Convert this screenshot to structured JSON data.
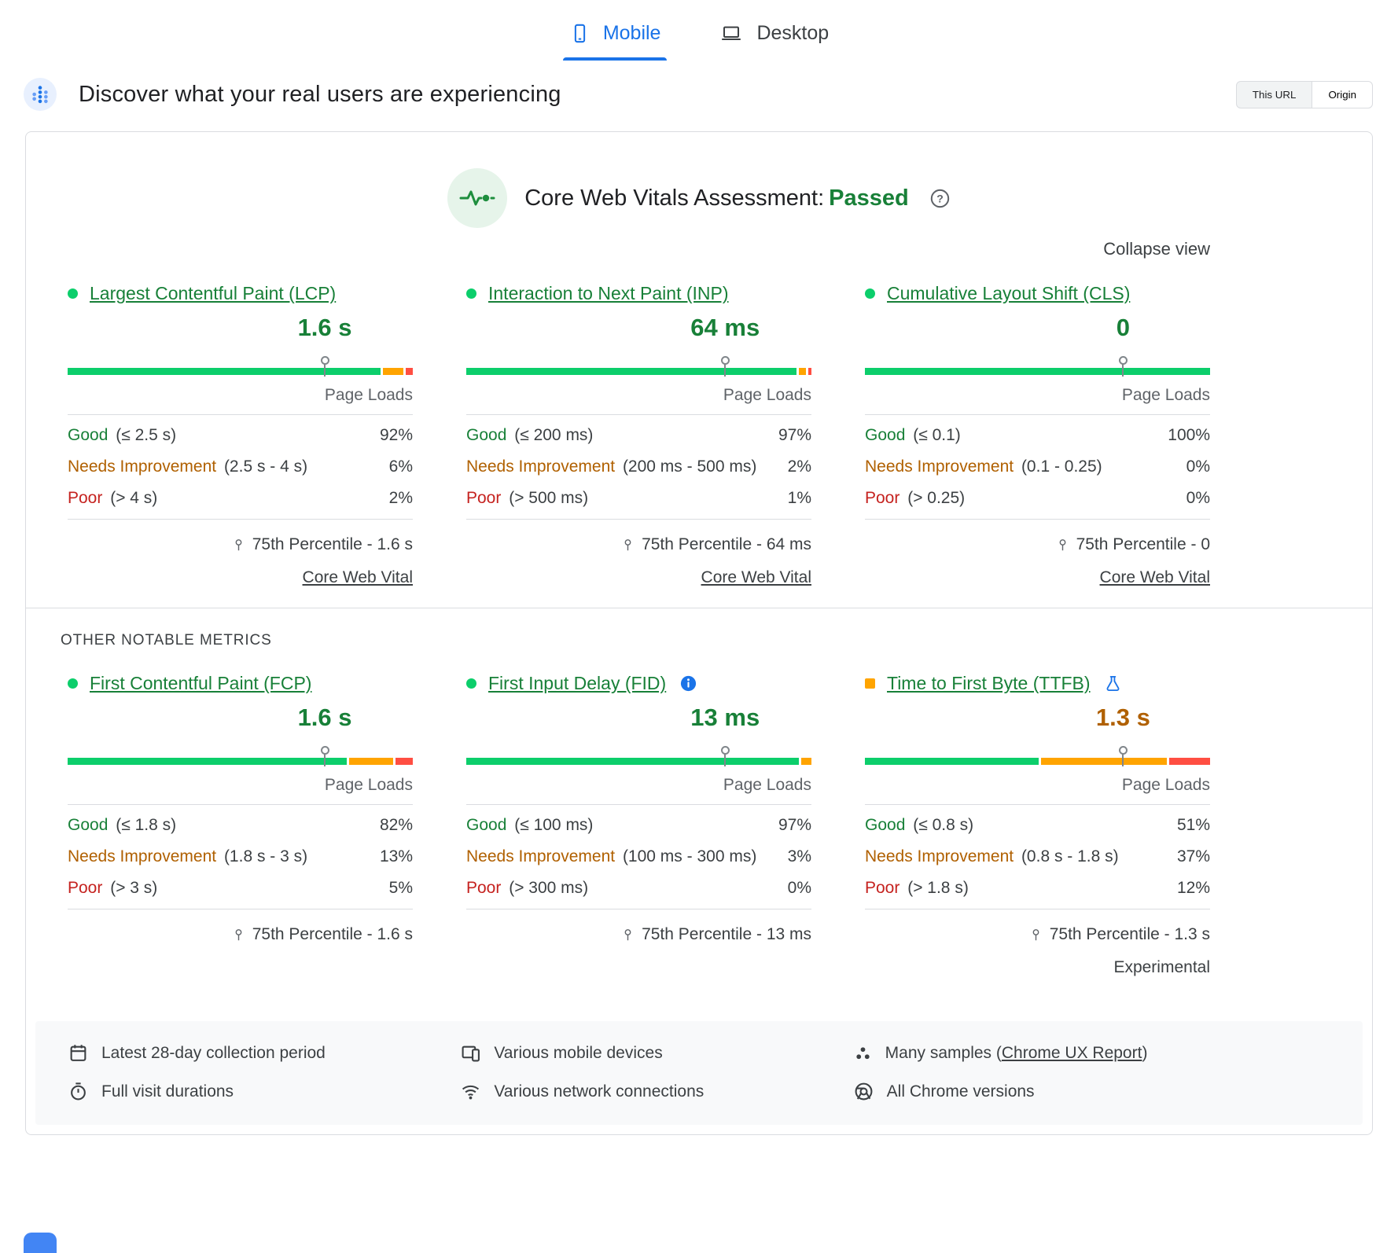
{
  "device_tabs": [
    {
      "label": "Mobile",
      "active": true
    },
    {
      "label": "Desktop",
      "active": false
    }
  ],
  "field_section": {
    "title": "Discover what your real users are experiencing",
    "scope_toggle": [
      {
        "label": "This URL",
        "selected": true
      },
      {
        "label": "Origin",
        "selected": false
      }
    ]
  },
  "assessment": {
    "title": "Core Web Vitals Assessment:",
    "status": "Passed",
    "collapse_label": "Collapse view"
  },
  "section_label": "OTHER NOTABLE METRICS",
  "labels": {
    "page_loads": "Page Loads",
    "core_web_vital": "Core Web Vital",
    "experimental": "Experimental"
  },
  "icons": {
    "help_glyph": "?"
  },
  "metrics": [
    {
      "id": "lcp",
      "title": "Largest Contentful Paint (LCP)",
      "value": "1.6 s",
      "bar": {
        "good": 92,
        "ni": 6,
        "poor": 2,
        "marker": 74.5
      },
      "rows": [
        {
          "label": "Good",
          "range": "(≤ 2.5 s)",
          "value": "92%"
        },
        {
          "label": "Needs Improvement",
          "range": "(2.5 s - 4 s)",
          "value": "6%"
        },
        {
          "label": "Poor",
          "range": "(> 4 s)",
          "value": "2%"
        }
      ],
      "percentile": "75th Percentile - 1.6 s"
    },
    {
      "id": "inp",
      "title": "Interaction to Next Paint (INP)",
      "value": "64 ms",
      "bar": {
        "good": 97,
        "ni": 2,
        "poor": 1,
        "marker": 75
      },
      "rows": [
        {
          "label": "Good",
          "range": "(≤ 200 ms)",
          "value": "97%"
        },
        {
          "label": "Needs Improvement",
          "range": "(200 ms - 500 ms)",
          "value": "2%"
        },
        {
          "label": "Poor",
          "range": "(> 500 ms)",
          "value": "1%"
        }
      ],
      "percentile": "75th Percentile - 64 ms"
    },
    {
      "id": "cls",
      "title": "Cumulative Layout Shift (CLS)",
      "value": "0",
      "bar": {
        "good": 100,
        "ni": 0,
        "poor": 0,
        "marker": 74.8
      },
      "rows": [
        {
          "label": "Good",
          "range": "(≤ 0.1)",
          "value": "100%"
        },
        {
          "label": "Needs Improvement",
          "range": "(0.1 - 0.25)",
          "value": "0%"
        },
        {
          "label": "Poor",
          "range": "(> 0.25)",
          "value": "0%"
        }
      ],
      "percentile": "75th Percentile - 0"
    },
    {
      "id": "fcp",
      "title": "First Contentful Paint (FCP)",
      "value": "1.6 s",
      "bar": {
        "good": 82,
        "ni": 13,
        "poor": 5,
        "marker": 74.5
      },
      "rows": [
        {
          "label": "Good",
          "range": "(≤ 1.8 s)",
          "value": "82%"
        },
        {
          "label": "Needs Improvement",
          "range": "(1.8 s - 3 s)",
          "value": "13%"
        },
        {
          "label": "Poor",
          "range": "(> 3 s)",
          "value": "5%"
        }
      ],
      "percentile": "75th Percentile - 1.6 s"
    },
    {
      "id": "fid",
      "title": "First Input Delay (FID)",
      "value": "13 ms",
      "bar": {
        "good": 97,
        "ni": 3,
        "poor": 0,
        "marker": 75
      },
      "rows": [
        {
          "label": "Good",
          "range": "(≤ 100 ms)",
          "value": "97%"
        },
        {
          "label": "Needs Improvement",
          "range": "(100 ms - 300 ms)",
          "value": "3%"
        },
        {
          "label": "Poor",
          "range": "(> 300 ms)",
          "value": "0%"
        }
      ],
      "percentile": "75th Percentile - 13 ms"
    },
    {
      "id": "ttfb",
      "title": "Time to First Byte (TTFB)",
      "value": "1.3 s",
      "bar": {
        "good": 51,
        "ni": 37,
        "poor": 12,
        "marker": 74.8
      },
      "rows": [
        {
          "label": "Good",
          "range": "(≤ 0.8 s)",
          "value": "51%"
        },
        {
          "label": "Needs Improvement",
          "range": "(0.8 s - 1.8 s)",
          "value": "37%"
        },
        {
          "label": "Poor",
          "range": "(> 1.8 s)",
          "value": "12%"
        }
      ],
      "percentile": "75th Percentile - 1.3 s"
    }
  ],
  "data_sources": [
    {
      "icon": "calendar-icon",
      "text": "Latest 28-day collection period"
    },
    {
      "icon": "mobile-devices-icon",
      "text": "Various mobile devices"
    },
    {
      "icon": "samples-icon",
      "prefix": "Many samples (",
      "link": "Chrome UX Report",
      "suffix": ")"
    },
    {
      "icon": "timer-icon",
      "text": "Full visit durations"
    },
    {
      "icon": "network-icon",
      "text": "Various network connections"
    },
    {
      "icon": "chrome-icon",
      "text": "All Chrome versions"
    }
  ],
  "colors": {
    "accent_blue": "#1a73e8",
    "good_green": "#188038",
    "bar_green": "#0cce6b",
    "bar_orange": "#ffa400",
    "bar_red": "#ff4e42",
    "needs_improvement_text": "#b06000",
    "poor_text": "#c5221f",
    "footer_bg": "#f8f9fa",
    "border": "#dadce0"
  }
}
